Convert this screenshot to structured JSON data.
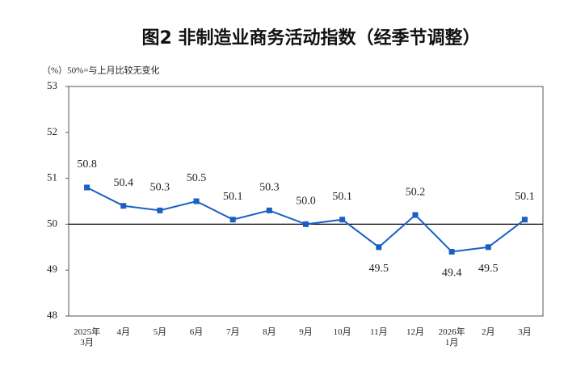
{
  "chart_data": {
    "type": "line",
    "title": "图2  非制造业商务活动指数（经季节调整）",
    "subtitle": "（%）50%=与上月比较无变化",
    "categories": [
      "2025年\n3月",
      "4月",
      "5月",
      "6月",
      "7月",
      "8月",
      "9月",
      "10月",
      "11月",
      "12月",
      "2026年\n1月",
      "2月",
      "3月"
    ],
    "series": [
      {
        "name": "非制造业商务活动指数",
        "color": "#1a5fc4",
        "values": [
          50.8,
          50.4,
          50.3,
          50.5,
          50.1,
          50.3,
          50.0,
          50.1,
          49.5,
          50.2,
          49.4,
          49.5,
          50.1
        ],
        "value_labels": [
          "50.8",
          "50.4",
          "50.3",
          "50.5",
          "50.1",
          "50.3",
          "50.0",
          "50.1",
          "49.5",
          "50.2",
          "49.4",
          "49.5",
          "50.1"
        ]
      }
    ],
    "reference_line": 50,
    "ylim": [
      48,
      53
    ],
    "yticks": [
      48,
      49,
      50,
      51,
      52,
      53
    ],
    "grid": false
  }
}
